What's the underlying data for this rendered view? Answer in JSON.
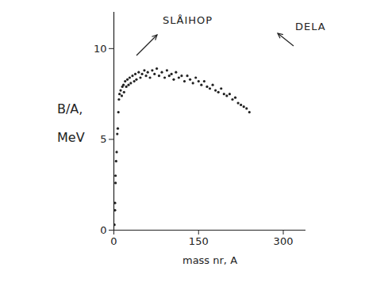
{
  "chart_data": {
    "type": "scatter",
    "x_label": "mass nr, A",
    "y_label": "B/A, MeV",
    "annotations": [
      "SLÅIHOP",
      "DELA"
    ],
    "x": [
      1,
      2,
      2,
      3,
      3,
      4,
      5,
      6,
      7,
      8,
      9,
      10,
      12,
      14,
      15,
      17,
      18,
      20,
      22,
      24,
      26,
      28,
      30,
      33,
      36,
      38,
      40,
      44,
      47,
      50,
      54,
      57,
      60,
      64,
      68,
      72,
      76,
      80,
      85,
      90,
      94,
      98,
      102,
      106,
      110,
      115,
      120,
      125,
      130,
      135,
      140,
      145,
      150,
      155,
      160,
      165,
      170,
      175,
      180,
      185,
      190,
      195,
      200,
      205,
      210,
      215,
      220,
      225,
      230,
      235,
      240
    ],
    "values": [
      0.3,
      1.1,
      1.5,
      2.6,
      3.0,
      3.8,
      4.3,
      5.3,
      5.6,
      6.5,
      7.2,
      7.5,
      7.7,
      7.4,
      7.9,
      8.0,
      7.6,
      8.2,
      7.9,
      8.3,
      8.0,
      8.4,
      8.1,
      8.5,
      8.2,
      8.6,
      8.3,
      8.7,
      8.4,
      8.6,
      8.8,
      8.5,
      8.7,
      8.4,
      8.8,
      8.6,
      8.9,
      8.5,
      8.7,
      8.4,
      8.8,
      8.5,
      8.6,
      8.3,
      8.7,
      8.4,
      8.5,
      8.2,
      8.5,
      8.3,
      8.1,
      8.4,
      8.2,
      8.0,
      8.2,
      7.9,
      7.8,
      8.0,
      7.7,
      7.6,
      7.8,
      7.5,
      7.4,
      7.5,
      7.2,
      7.3,
      7.0,
      6.9,
      6.8,
      6.7,
      6.5
    ],
    "color": "#222222",
    "marker": "dot",
    "xlim": [
      0,
      340
    ],
    "xticks": [
      0,
      150,
      300
    ],
    "ylim": [
      0,
      12
    ],
    "yticks": [
      0,
      5,
      10
    ],
    "grid": false
  }
}
